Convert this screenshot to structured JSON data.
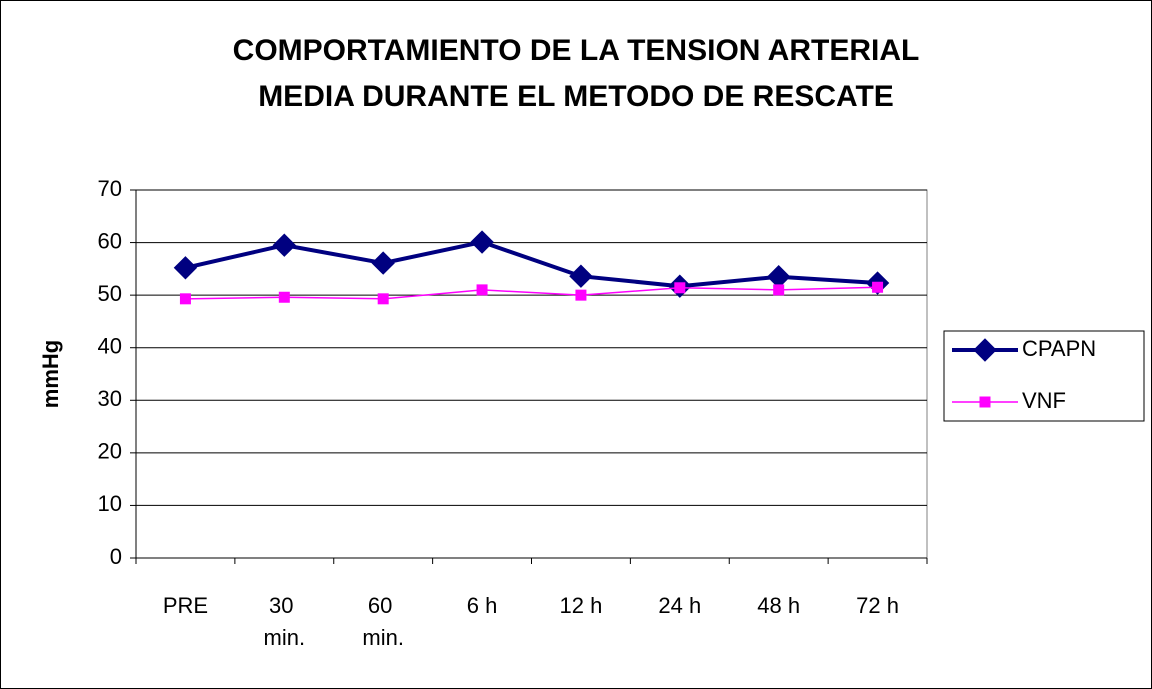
{
  "chart_data": {
    "type": "line",
    "title": [
      "COMPORTAMIENTO DE LA TENSION ARTERIAL",
      "MEDIA DURANTE EL METODO DE RESCATE"
    ],
    "ylabel": "mmHg",
    "categories": [
      "PRE",
      "30 min.",
      "60 min.",
      "6 h",
      "12 h",
      "24 h",
      "48 h",
      "72 h"
    ],
    "series": [
      {
        "name": "CPAPN",
        "color": "#000080",
        "marker": "diamond",
        "values": [
          55.2,
          59.5,
          56.1,
          60.1,
          53.6,
          51.7,
          53.5,
          52.3
        ]
      },
      {
        "name": "VNF",
        "color": "#ff00ff",
        "marker": "square",
        "values": [
          49.3,
          49.6,
          49.3,
          51.0,
          50.0,
          51.4,
          51.0,
          51.5
        ]
      }
    ],
    "ylim": [
      0,
      70
    ],
    "yticks": [
      0,
      10,
      20,
      30,
      40,
      50,
      60,
      70
    ],
    "grid": true,
    "legend": "right"
  }
}
